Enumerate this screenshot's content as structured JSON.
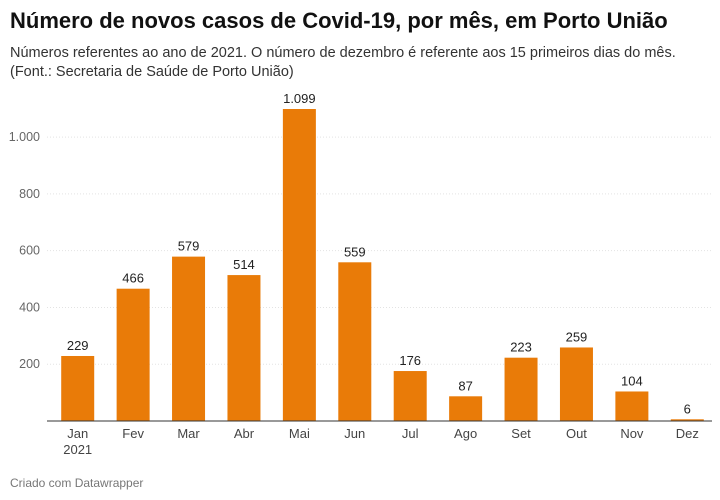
{
  "title": "Número de novos casos de Covid-19, por mês, em Porto União",
  "subtitle": "Números referentes ao ano de 2021. O número de dezembro é referente aos 15 primeiros dias do mês. (Font.: Secretaria de Saúde de Porto União)",
  "footer": "Criado com Datawrapper",
  "chart_data": {
    "type": "bar",
    "title": "Número de novos casos de Covid-19, por mês, em Porto União",
    "xlabel": "",
    "ylabel": "",
    "categories": [
      "Jan",
      "Fev",
      "Mar",
      "Abr",
      "Mai",
      "Jun",
      "Jul",
      "Ago",
      "Set",
      "Out",
      "Nov",
      "Dez"
    ],
    "category_sublabels": [
      "2021",
      "",
      "",
      "",
      "",
      "",
      "",
      "",
      "",
      "",
      "",
      ""
    ],
    "values": [
      229,
      466,
      579,
      514,
      1099,
      559,
      176,
      87,
      223,
      259,
      104,
      6
    ],
    "value_labels": [
      "229",
      "466",
      "579",
      "514",
      "1.099",
      "559",
      "176",
      "87",
      "223",
      "259",
      "104",
      "6"
    ],
    "yticks": [
      200,
      400,
      600,
      800,
      1000
    ],
    "ytick_labels": [
      "200",
      "400",
      "600",
      "800",
      "1.000"
    ],
    "ylim": [
      0,
      1100
    ],
    "grid": true,
    "bar_color": "#e97b08"
  }
}
